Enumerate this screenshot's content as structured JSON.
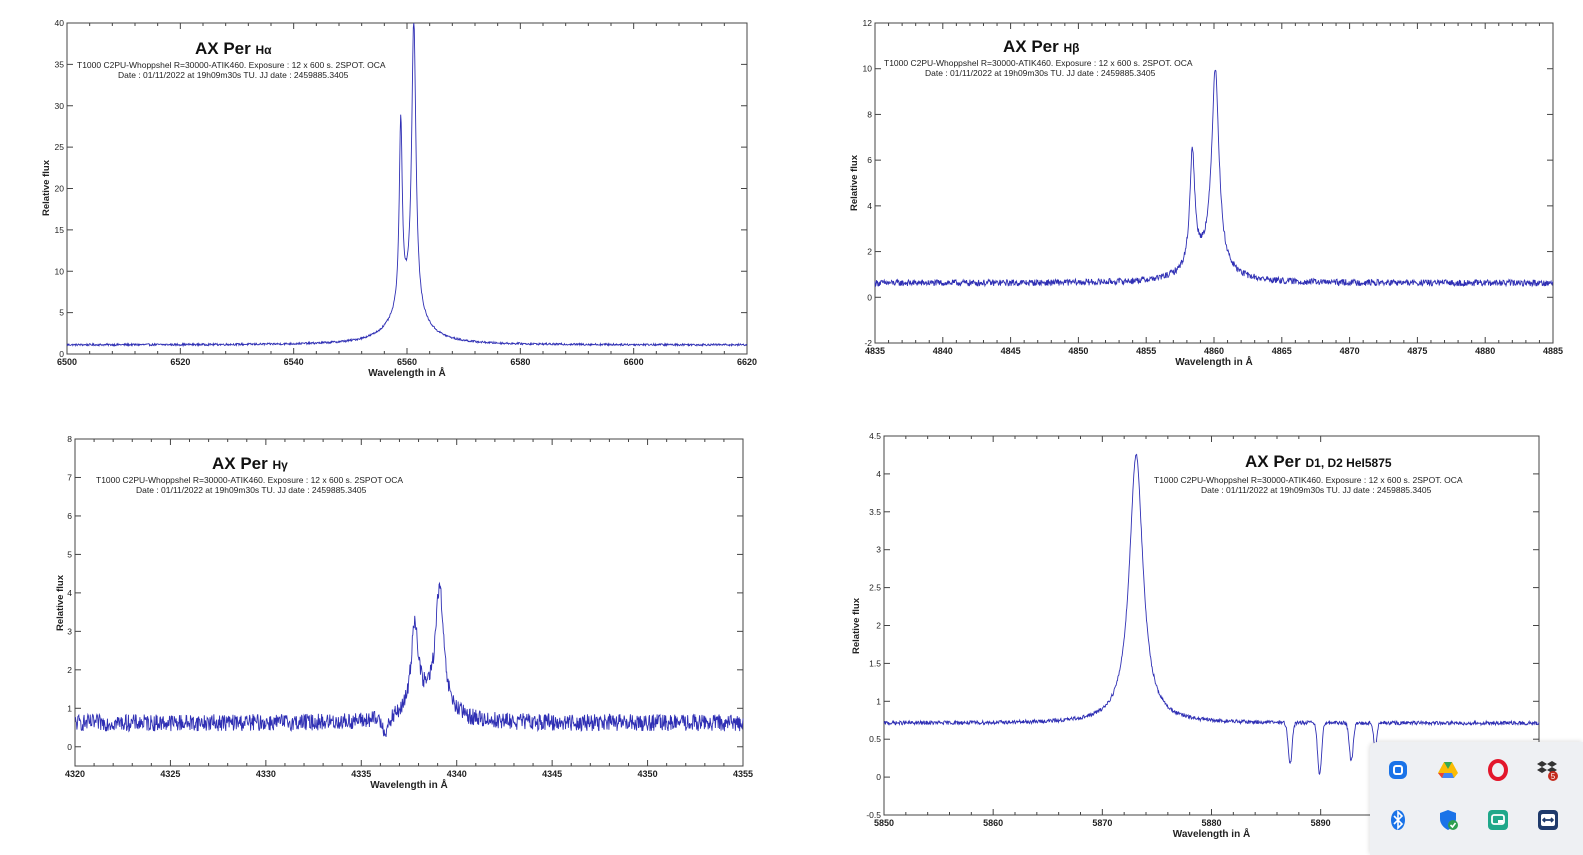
{
  "chart_data": [
    {
      "type": "line",
      "id": "ha",
      "title": "AX Per",
      "title_sub": "Hα",
      "subtitle_line1": "T1000 C2PU-Whoppshel R=30000-ATIK460. Exposure : 12 x 600 s. 2SPOT. OCA",
      "subtitle_line2": "Date : 01/11/2022 at 19h09m30s TU. JJ date : 2459885.3405",
      "xlabel": "Wavelength in Å",
      "ylabel": "Relative flux",
      "xlim": [
        6500,
        6620
      ],
      "ylim": [
        0,
        40
      ],
      "xticks": [
        6500,
        6520,
        6540,
        6560,
        6580,
        6600,
        6620
      ],
      "yticks": [
        0,
        5,
        10,
        15,
        20,
        25,
        30,
        35,
        40
      ],
      "series": [
        {
          "name": "Hα profile",
          "color": "#2f2fb4",
          "continuum": 1.1,
          "noise": 0.12,
          "peaks": [
            {
              "center": 6558.9,
              "amp": 22.5,
              "width": 0.32
            },
            {
              "center": 6561.2,
              "amp": 35.0,
              "width": 0.45
            },
            {
              "center": 6560.0,
              "amp": 4.5,
              "width": 3.4
            }
          ],
          "dips": []
        }
      ]
    },
    {
      "type": "line",
      "id": "hb",
      "title": "AX Per",
      "title_sub": "Hβ",
      "subtitle_line1": "T1000 C2PU-Whoppshel R=30000-ATIK460. Exposure : 12 x 600 s. 2SPOT. OCA",
      "subtitle_line2": "Date : 01/11/2022 at 19h09m30s TU. JJ date : 2459885.3405",
      "xlabel": "Wavelength in Å",
      "ylabel": "Relative flux",
      "xlim": [
        4835,
        4885
      ],
      "ylim": [
        -2,
        12
      ],
      "xticks": [
        4835,
        4840,
        4845,
        4850,
        4855,
        4860,
        4865,
        4870,
        4875,
        4880,
        4885
      ],
      "yticks": [
        -2,
        0,
        2,
        4,
        6,
        8,
        10,
        12
      ],
      "series": [
        {
          "name": "Hβ profile",
          "color": "#2f2fb4",
          "continuum": 0.62,
          "noise": 0.14,
          "peaks": [
            {
              "center": 4858.4,
              "amp": 5.0,
              "width": 0.22
            },
            {
              "center": 4860.1,
              "amp": 8.6,
              "width": 0.32
            },
            {
              "center": 4859.4,
              "amp": 0.9,
              "width": 1.6
            }
          ],
          "dips": []
        }
      ]
    },
    {
      "type": "line",
      "id": "hg",
      "title": "AX Per",
      "title_sub": "Hγ",
      "subtitle_line1": "T1000 C2PU-Whoppshel R=30000-ATIK460. Exposure : 12 x 600 s. 2SPOT OCA",
      "subtitle_line2": "Date : 01/11/2022 at 19h09m30s TU. JJ date : 2459885.3405",
      "xlabel": "Wavelength in Å",
      "ylabel": "Relative flux",
      "xlim": [
        4320,
        4355
      ],
      "ylim": [
        -0.5,
        8
      ],
      "xticks": [
        4320,
        4325,
        4330,
        4335,
        4340,
        4345,
        4350,
        4355
      ],
      "yticks": [
        0,
        1,
        2,
        3,
        4,
        5,
        6,
        7,
        8
      ],
      "series": [
        {
          "name": "Hγ profile",
          "color": "#2f2fb4",
          "continuum": 0.62,
          "noise": 0.22,
          "peaks": [
            {
              "center": 4337.8,
              "amp": 2.3,
              "width": 0.22
            },
            {
              "center": 4339.1,
              "amp": 3.1,
              "width": 0.25
            },
            {
              "center": 4338.6,
              "amp": 0.5,
              "width": 1.0
            }
          ],
          "dips": [
            {
              "center": 4336.3,
              "depth": 0.35,
              "width": 0.25
            }
          ]
        }
      ]
    },
    {
      "type": "line",
      "id": "he",
      "title": "AX Per",
      "title_sub": "D1, D2 HeI5875",
      "subtitle_line1": "T1000 C2PU-Whoppshel R=30000-ATIK460. Exposure : 12 x 600 s. 2SPOT. OCA",
      "subtitle_line2": "Date : 01/11/2022 at 19h09m30s TU. JJ date : 2459885.3405",
      "xlabel": "Wavelength in Å",
      "ylabel": "Relative flux",
      "xlim": [
        5850,
        5910
      ],
      "ylim": [
        -0.5,
        4.5
      ],
      "xticks": [
        5850,
        5860,
        5870,
        5880,
        5890
      ],
      "yticks": [
        -0.5,
        0,
        0.5,
        1,
        1.5,
        2,
        2.5,
        3,
        3.5,
        4,
        4.5
      ],
      "series": [
        {
          "name": "HeI / Na D profile",
          "color": "#2f2fb4",
          "continuum": 0.71,
          "noise": 0.025,
          "peaks": [
            {
              "center": 5873.1,
              "amp": 3.55,
              "width": 0.75
            }
          ],
          "dips": [
            {
              "center": 5887.2,
              "depth": 0.55,
              "width": 0.25
            },
            {
              "center": 5889.9,
              "depth": 0.7,
              "width": 0.25
            },
            {
              "center": 5892.8,
              "depth": 0.5,
              "width": 0.25
            },
            {
              "center": 5895.0,
              "depth": 0.35,
              "width": 0.2
            }
          ]
        }
      ]
    }
  ],
  "tray": {
    "icons": [
      {
        "name": "screen-capture-icon",
        "color": "#1a73e8"
      },
      {
        "name": "google-drive-icon",
        "color": "#34a853"
      },
      {
        "name": "opera-icon",
        "color": "#e3172b"
      },
      {
        "name": "dropbox-icon",
        "color": "#c42b1c",
        "badge": "5"
      },
      {
        "name": "bluetooth-icon",
        "color": "#1a73e8"
      },
      {
        "name": "security-shield-icon",
        "color": "#1a73e8"
      },
      {
        "name": "cast-app-icon",
        "color": "#1fa88a"
      },
      {
        "name": "remote-desktop-icon",
        "color": "#1f3a6b"
      }
    ]
  }
}
